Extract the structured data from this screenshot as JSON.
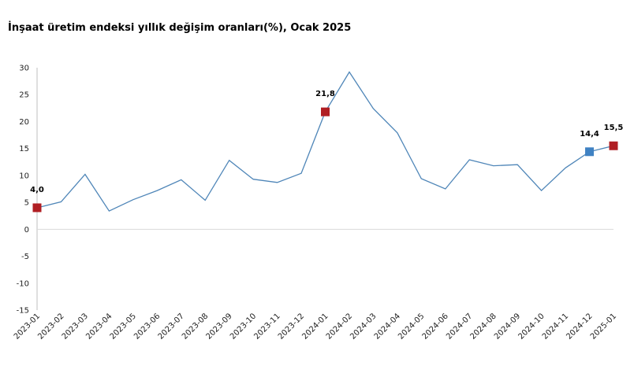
{
  "chart_data": {
    "type": "line",
    "title": "İnşaat üretim endeksi yıllık değişim oranları(%), Ocak 2025",
    "xlabel": "",
    "ylabel": "",
    "ylim": [
      -15,
      30
    ],
    "yticks": [
      30,
      25,
      20,
      15,
      10,
      5,
      0,
      -5,
      -10,
      -15
    ],
    "grid": false,
    "categories": [
      "2023-01",
      "2023-02",
      "2023-03",
      "2023-04",
      "2023-05",
      "2023-06",
      "2023-07",
      "2023-08",
      "2023-09",
      "2023-10",
      "2023-11",
      "2023-12",
      "2024-01",
      "2024-02",
      "2024-03",
      "2024-04",
      "2024-05",
      "2024-06",
      "2024-07",
      "2024-08",
      "2024-09",
      "2024-10",
      "2024-11",
      "2024-12",
      "2025-01"
    ],
    "series": [
      {
        "values": [
          4.0,
          5.1,
          10.2,
          3.4,
          5.5,
          7.2,
          9.2,
          5.4,
          12.8,
          9.3,
          8.7,
          10.4,
          21.8,
          29.2,
          22.4,
          17.9,
          9.4,
          7.5,
          12.9,
          11.8,
          12.0,
          7.2,
          11.4,
          14.4,
          15.5
        ],
        "color": "#4f86b8"
      }
    ],
    "highlights": [
      {
        "index": 0,
        "label": "4,0",
        "color": "#b01e23"
      },
      {
        "index": 12,
        "label": "21,8",
        "color": "#b01e23"
      },
      {
        "index": 23,
        "label": "14,4",
        "color": "#3f82c3"
      },
      {
        "index": 24,
        "label": "15,5",
        "color": "#b01e23"
      }
    ]
  }
}
